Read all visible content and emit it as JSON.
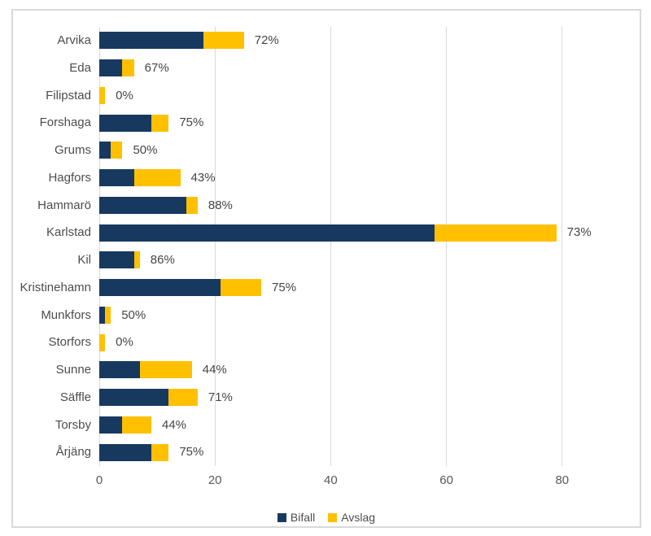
{
  "chart_data": {
    "type": "bar",
    "variant": "horizontal-stacked",
    "title": "",
    "xlabel": "",
    "ylabel": "",
    "categories": [
      "Arvika",
      "Eda",
      "Filipstad",
      "Forshaga",
      "Grums",
      "Hagfors",
      "Hammarö",
      "Karlstad",
      "Kil",
      "Kristinehamn",
      "Munkfors",
      "Storfors",
      "Sunne",
      "Säffle",
      "Torsby",
      "Årjäng"
    ],
    "series": [
      {
        "name": "Bifall",
        "color": "#17395F",
        "values": [
          18,
          4,
          0,
          9,
          2,
          6,
          15,
          58,
          6,
          21,
          1,
          0,
          7,
          12,
          4,
          9
        ]
      },
      {
        "name": "Avslag",
        "color": "#FFC000",
        "values": [
          7,
          2,
          1,
          3,
          2,
          8,
          2,
          21,
          1,
          7,
          1,
          1,
          9,
          5,
          5,
          3
        ]
      }
    ],
    "bar_labels": [
      "72%",
      "67%",
      "0%",
      "75%",
      "50%",
      "43%",
      "88%",
      "73%",
      "86%",
      "75%",
      "50%",
      "0%",
      "44%",
      "71%",
      "44%",
      "75%"
    ],
    "x_ticks": [
      0,
      20,
      40,
      60,
      80
    ],
    "xlim": [
      0,
      89.5
    ],
    "grid": true,
    "legend_position": "bottom"
  },
  "style_colors": {
    "grid": "#D9D9D9",
    "frame_border": "#D9D9D9",
    "tick_text": "#595959",
    "label_text": "#4d4d4d"
  }
}
